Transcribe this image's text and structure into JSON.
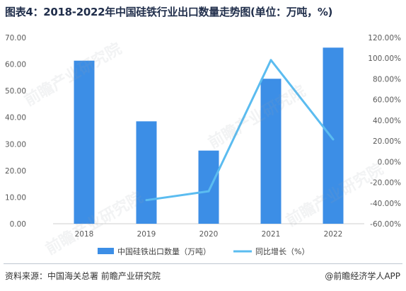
{
  "title": "图表4：2018-2022年中国硅铁行业出口数量走势图(单位：万吨，%)",
  "chart_data": {
    "type": "bar",
    "categories": [
      "2018",
      "2019",
      "2020",
      "2021",
      "2022"
    ],
    "series": [
      {
        "name": "中国硅铁出口数量（万吨）",
        "kind": "bar",
        "axis": "left",
        "color": "#3c8ee6",
        "values": [
          61.3,
          38.5,
          27.5,
          54.5,
          66.2
        ]
      },
      {
        "name": "同比增长（%）",
        "kind": "line",
        "axis": "right",
        "color": "#5bbcf0",
        "values": [
          null,
          -37.2,
          -28.6,
          98.2,
          21.5
        ]
      }
    ],
    "left_axis": {
      "min": 0,
      "max": 70,
      "step": 10,
      "ticks": [
        "0.00",
        "10.00",
        "20.00",
        "30.00",
        "40.00",
        "50.00",
        "60.00",
        "70.00"
      ]
    },
    "right_axis": {
      "min": -60,
      "max": 120,
      "step": 20,
      "ticks": [
        "-60.00%",
        "-40.00%",
        "-20.00%",
        "0.00%",
        "20.00%",
        "40.00%",
        "60.00%",
        "80.00%",
        "100.00%",
        "120.00%"
      ]
    },
    "grid": false,
    "legend_position": "bottom"
  },
  "footer": {
    "source": "资料来源：中国海关总署 前瞻产业研究院",
    "credit": "@前瞻经济学人APP"
  },
  "watermark": {
    "text": "前瞻产业研究院"
  }
}
